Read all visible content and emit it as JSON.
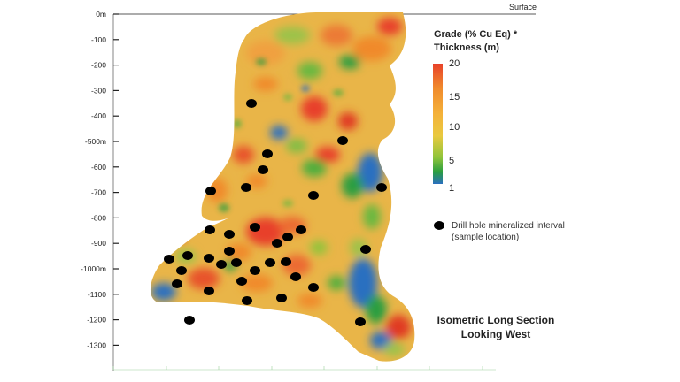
{
  "surface_label": "Surface",
  "depth_axis": {
    "labels": [
      "0m",
      "-100",
      "-200",
      "-300",
      "-400",
      "-500m",
      "-600",
      "-700",
      "-800",
      "-900",
      "-1000m",
      "-1100",
      "-1200",
      "-1300"
    ]
  },
  "legend": {
    "title_line1": "Grade (% Cu Eq) *",
    "title_line2": "Thickness (m)",
    "scale_labels": [
      "20",
      "15",
      "10",
      "5",
      "1"
    ],
    "colors": [
      "#e8412a",
      "#f08a2c",
      "#f4b23a",
      "#e9c93f",
      "#8fc43a",
      "#2a9e3f",
      "#2a6fc0"
    ],
    "drillhole_line1": "Drill hole mineralized interval",
    "drillhole_line2": "(sample location)"
  },
  "section_title_line1": "Isometric Long Section",
  "section_title_line2": "Looking West"
}
